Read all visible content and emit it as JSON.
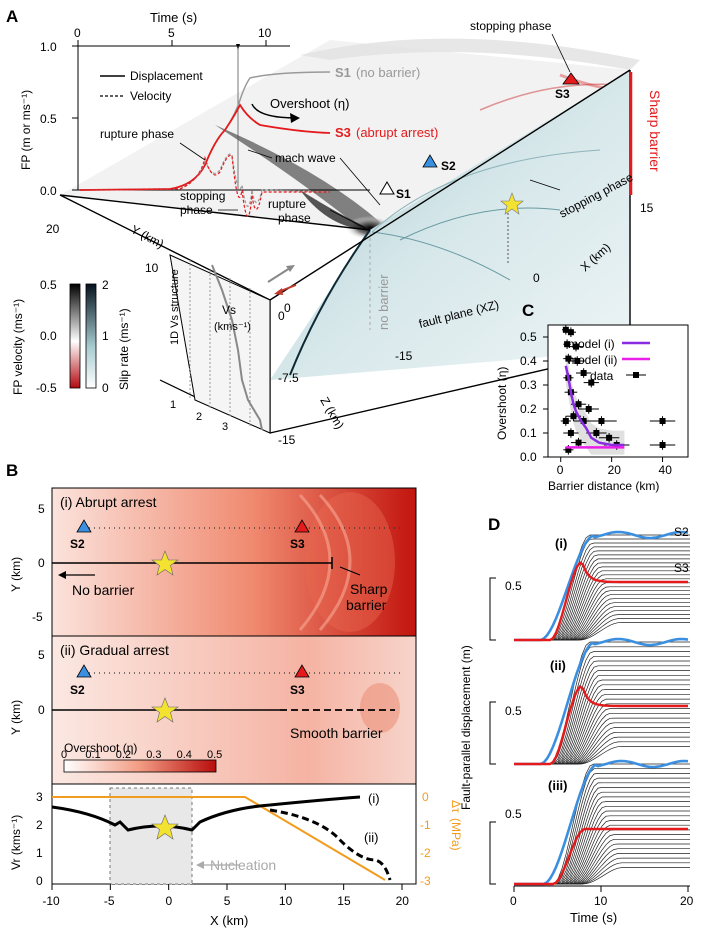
{
  "panels": {
    "a": "A",
    "b": "B",
    "c": "C",
    "d": "D"
  },
  "panel_a": {
    "time_axis_label": "Time (s)",
    "time_ticks": [
      "0",
      "5",
      "10"
    ],
    "fp_axis_label": "FP (m or ms⁻¹)",
    "fp_ticks": [
      "1.0",
      "0.5",
      "0.0"
    ],
    "legend_displacement": "Displacement",
    "legend_velocity": "Velocity",
    "s1_trace_label": "S1",
    "s1_trace_note": "(no barrier)",
    "overshoot_label": "Overshoot (η)",
    "s3_trace_label": "S3",
    "s3_trace_note": "(abrupt arrest)",
    "rupture_phase_label": "rupture phase",
    "mach_wave_label": "mach wave",
    "stopping_phase_label": "stopping",
    "stopping_phase_label2": "phase",
    "rupture_phase_3d_1": "rupture",
    "rupture_phase_3d_2": "phase",
    "stopping_phase_top": "stopping phase",
    "stopping_phase_plane": "stopping phase",
    "sharp_barrier_label": "Sharp barrier",
    "s1_station": "S1",
    "s2_station": "S2",
    "s3_station": "S3",
    "no_barrier_label": "no barrier",
    "fault_plane_label": "fault plane (XZ)",
    "y_axis_label": "Y (km)",
    "y_ticks": [
      "20",
      "10",
      "0"
    ],
    "x_axis_label": "X (km)",
    "x_ticks": [
      "15",
      "0",
      "-15"
    ],
    "z_axis_label": "Z (km)",
    "z_ticks": [
      "0",
      "-7.5",
      "-15"
    ],
    "fp_velocity_label": "FP velocity (ms⁻¹)",
    "fp_velocity_ticks": [
      "0.5",
      "0.0",
      "-0.5"
    ],
    "slip_rate_label": "Slip rate (ms⁻¹)",
    "slip_rate_ticks": [
      "2",
      "1",
      "0"
    ],
    "vs_structure_label": "1D Vs structure",
    "vs_label": "Vs",
    "vs_units": "(kms⁻¹)",
    "vs_ticks": [
      "1",
      "2",
      "3"
    ]
  },
  "panel_b": {
    "title_i": "(i) Abrupt arrest",
    "title_ii": "(ii) Gradual arrest",
    "s2": "S2",
    "s3": "S3",
    "no_barrier": "No barrier",
    "sharp_barrier_1": "Sharp",
    "sharp_barrier_2": "barrier",
    "smooth_barrier": "Smooth barrier",
    "y_label": "Y (km)",
    "y_ticks_i": [
      "5",
      "0",
      "-5"
    ],
    "y_ticks_ii": [
      "5",
      "0"
    ],
    "overshoot_cbar_label": "Overshoot (η)",
    "overshoot_cbar_ticks": [
      "0",
      "0.1",
      "0.2",
      "0.3",
      "0.4",
      "0.5"
    ],
    "vr_label": "Vr (kms⁻¹)",
    "vr_ticks": [
      "3",
      "2",
      "1",
      "0"
    ],
    "stress_label": "Δτ",
    "stress_sub": "s",
    "stress_units": "(MPa)",
    "stress_ticks": [
      "0",
      "-1",
      "-2",
      "-3"
    ],
    "case_i": "(i)",
    "case_ii": "(ii)",
    "nucleation": "Nucleation",
    "x_label": "X (km)",
    "x_ticks": [
      "-10",
      "-5",
      "0",
      "5",
      "10",
      "15",
      "20"
    ]
  },
  "chart_data": [
    {
      "type": "scatter",
      "panel": "C",
      "xlabel": "Barrier distance (km)",
      "ylabel": "Overshoot (η)",
      "xlim": [
        -5,
        50
      ],
      "ylim": [
        0,
        0.55
      ],
      "x_ticks": [
        "0",
        "20",
        "40"
      ],
      "y_ticks": [
        "0.0",
        "0.1",
        "0.2",
        "0.3",
        "0.4",
        "0.5"
      ],
      "legend": [
        "model (i)",
        "model (ii)",
        "data"
      ],
      "legend_position": "top-right",
      "colors": {
        "model_i": "#8a2be2",
        "model_ii": "#e91ee9",
        "data": "#111111"
      },
      "data": [
        {
          "x": 2,
          "y": 0.53,
          "xerr": 1.5,
          "yerr": 0.02
        },
        {
          "x": 4,
          "y": 0.52,
          "xerr": 2,
          "yerr": 0.02
        },
        {
          "x": 2.5,
          "y": 0.47,
          "xerr": 1.5,
          "yerr": 0.02
        },
        {
          "x": 6,
          "y": 0.46,
          "xerr": 3,
          "yerr": 0.02
        },
        {
          "x": 3,
          "y": 0.41,
          "xerr": 2,
          "yerr": 0.02
        },
        {
          "x": 6.5,
          "y": 0.4,
          "xerr": 3,
          "yerr": 0.02
        },
        {
          "x": 9,
          "y": 0.35,
          "xerr": 3,
          "yerr": 0.02
        },
        {
          "x": 3,
          "y": 0.33,
          "xerr": 2,
          "yerr": 0.02
        },
        {
          "x": 12,
          "y": 0.31,
          "xerr": 3,
          "yerr": 0.02
        },
        {
          "x": 4,
          "y": 0.27,
          "xerr": 2.5,
          "yerr": 0.02
        },
        {
          "x": 7,
          "y": 0.22,
          "xerr": 3,
          "yerr": 0.02
        },
        {
          "x": 11,
          "y": 0.2,
          "xerr": 4,
          "yerr": 0.02
        },
        {
          "x": 5,
          "y": 0.17,
          "xerr": 3,
          "yerr": 0.02
        },
        {
          "x": 2,
          "y": 0.15,
          "xerr": 2,
          "yerr": 0.02
        },
        {
          "x": 9,
          "y": 0.15,
          "xerr": 4,
          "yerr": 0.02
        },
        {
          "x": 16,
          "y": 0.15,
          "xerr": 6,
          "yerr": 0.02
        },
        {
          "x": 40,
          "y": 0.15,
          "xerr": 5,
          "yerr": 0.02
        },
        {
          "x": 4,
          "y": 0.1,
          "xerr": 3,
          "yerr": 0.02
        },
        {
          "x": 14,
          "y": 0.1,
          "xerr": 4,
          "yerr": 0.02
        },
        {
          "x": 19,
          "y": 0.08,
          "xerr": 4,
          "yerr": 0.02
        },
        {
          "x": 7,
          "y": 0.06,
          "xerr": 3,
          "yerr": 0.02
        },
        {
          "x": 22,
          "y": 0.05,
          "xerr": 5,
          "yerr": 0.02
        },
        {
          "x": 40,
          "y": 0.05,
          "xerr": 5,
          "yerr": 0.02
        },
        {
          "x": 3,
          "y": 0.03,
          "xerr": 2,
          "yerr": 0.02
        }
      ],
      "model_i": {
        "x": [
          2,
          3,
          4,
          5,
          6,
          8,
          10,
          12,
          15,
          20,
          25
        ],
        "y": [
          0.38,
          0.33,
          0.27,
          0.22,
          0.19,
          0.15,
          0.12,
          0.08,
          0.06,
          0.05,
          0.05
        ]
      },
      "model_ii": {
        "x": [
          2,
          5,
          10,
          15,
          20,
          25
        ],
        "y": [
          0.04,
          0.04,
          0.04,
          0.04,
          0.04,
          0.04
        ]
      }
    },
    {
      "type": "line",
      "panel": "D",
      "ylabel": "Fault-parallel displacement (m)",
      "xlabel": "Time (s)",
      "x_ticks": [
        "0",
        "10",
        "20"
      ],
      "scale_label": "0.5",
      "subpanels": [
        "(i)",
        "(ii)",
        "(iii)"
      ],
      "s2_label": "S2",
      "s3_label": "S3",
      "colors": {
        "s2": "#3b8fe0",
        "s3": "#e41a1c"
      }
    }
  ]
}
